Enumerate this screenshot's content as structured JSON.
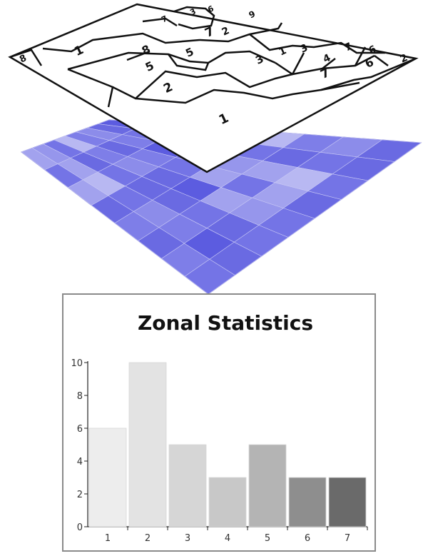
{
  "zone_layer": {
    "labels": [
      "8",
      "7",
      "3",
      "6",
      "9",
      "1",
      "7",
      "8",
      "5",
      "3",
      "1",
      "3",
      "4",
      "7",
      "6",
      "2",
      "6",
      "5",
      "2",
      "7",
      "2",
      "1"
    ]
  },
  "value_raster": {
    "rows": 8,
    "cols": 8,
    "base_color": "#8a8ae8"
  },
  "chart_data": {
    "type": "bar",
    "title": "Zonal Statistics",
    "categories": [
      "1",
      "2",
      "3",
      "4",
      "5",
      "6",
      "7"
    ],
    "values": [
      6,
      10,
      5,
      3,
      5,
      3,
      3
    ],
    "ylim": [
      0,
      10
    ],
    "yticks": [
      "0",
      "2",
      "4",
      "6",
      "8",
      "10"
    ],
    "bar_colors": [
      "#ededed",
      "#e3e3e3",
      "#d6d6d6",
      "#c8c8c8",
      "#b4b4b4",
      "#8e8e8e",
      "#6a6a6a"
    ],
    "xlabel": "",
    "ylabel": "",
    "grid": false
  }
}
